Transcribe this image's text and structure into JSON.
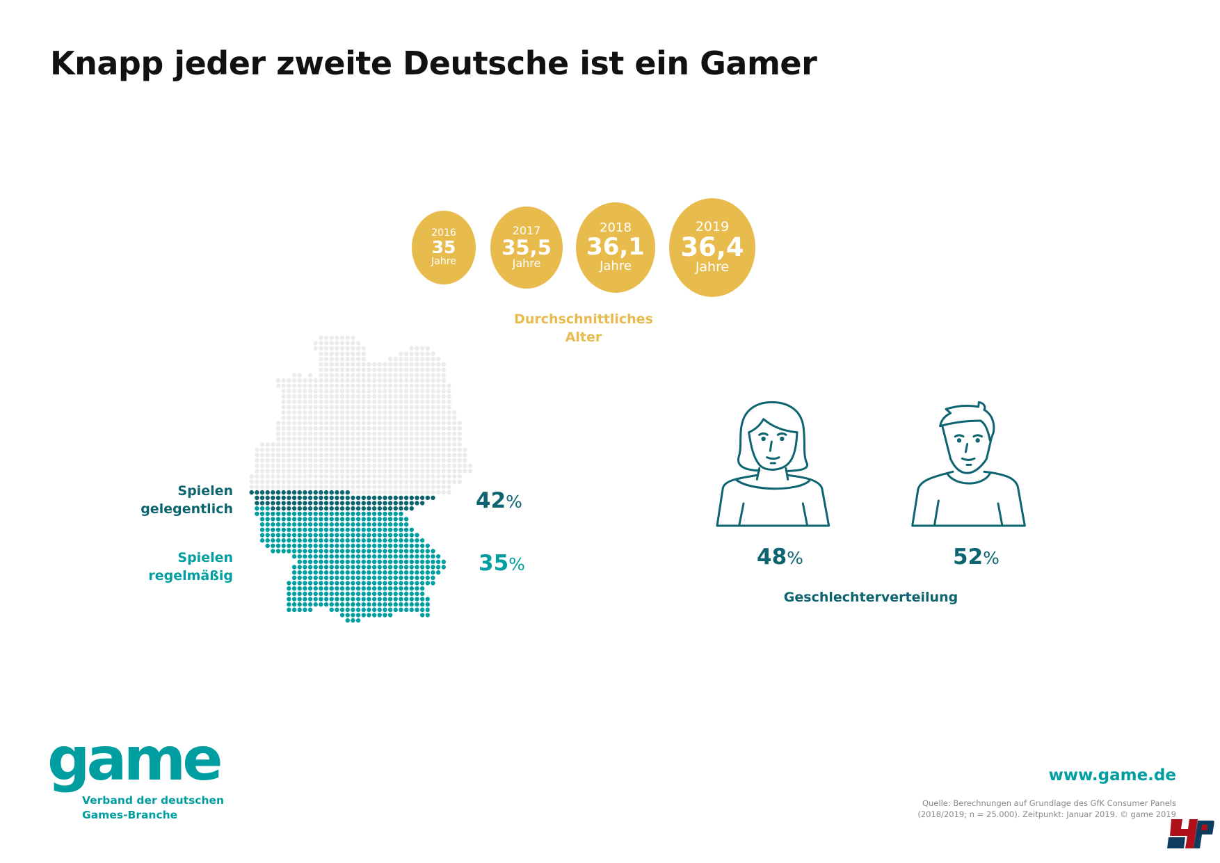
{
  "title": "Knapp jeder zweite Deutsche ist ein Gamer",
  "age": {
    "circles": [
      {
        "year": "2016",
        "value": "35",
        "unit": "Jahre"
      },
      {
        "year": "2017",
        "value": "35,5",
        "unit": "Jahre"
      },
      {
        "year": "2018",
        "value": "36,1",
        "unit": "Jahre"
      },
      {
        "year": "2019",
        "value": "36,4",
        "unit": "Jahre"
      }
    ],
    "label_line1": "Durchschnittliches",
    "label_line2": "Alter"
  },
  "map": {
    "occasional": {
      "label_line1": "Spielen",
      "label_line2": "gelegentlich",
      "value": "42",
      "unit": "%"
    },
    "regular": {
      "label_line1": "Spielen",
      "label_line2": "regelmäßig",
      "value": "35",
      "unit": "%"
    }
  },
  "gender": {
    "female": {
      "value": "48",
      "unit": "%"
    },
    "male": {
      "value": "52",
      "unit": "%"
    },
    "label": "Geschlechterverteilung"
  },
  "footer": {
    "logo": "game",
    "logo_sub_line1": "Verband der deutschen",
    "logo_sub_line2": "Games-Branche",
    "website": "www.game.de",
    "source_line1": "Quelle: Berechnungen auf Grundlage des GfK Consumer Panels",
    "source_line2": "(2018/2019; n = 25.000). Zeitpunkt: Januar 2019. © game 2019",
    "corner_logo": "4P"
  },
  "colors": {
    "gold": "#e8bb4d",
    "dark_teal": "#0c6470",
    "teal": "#009ea0",
    "grey_dot": "#ebebeb"
  }
}
